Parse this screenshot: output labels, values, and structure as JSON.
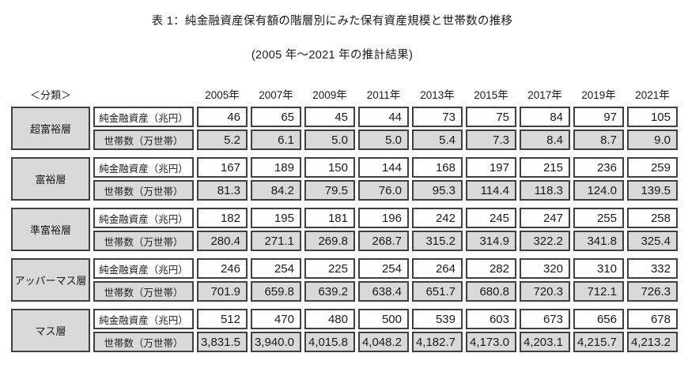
{
  "title": "表 1：純金融資産保有額の階層別にみた保有資産規模と世帯数の推移",
  "subtitle": "(2005 年～2021 年の推計結果)",
  "colors": {
    "cell_border": "#404040",
    "grey_fill": "#d9d9d9",
    "text": "#1a1a1a",
    "background": "#ffffff"
  },
  "table": {
    "classification_label": "＜分類＞",
    "years": [
      "2005年",
      "2007年",
      "2009年",
      "2011年",
      "2013年",
      "2015年",
      "2017年",
      "2019年",
      "2021年"
    ],
    "row_labels": {
      "assets": "純金融資産（兆円）",
      "households": "世帯数（万世帯）"
    },
    "groups": [
      {
        "tier": "超富裕層",
        "assets": [
          "46",
          "65",
          "45",
          "44",
          "73",
          "75",
          "84",
          "97",
          "105"
        ],
        "households": [
          "5.2",
          "6.1",
          "5.0",
          "5.0",
          "5.4",
          "7.3",
          "8.4",
          "8.7",
          "9.0"
        ]
      },
      {
        "tier": "富裕層",
        "assets": [
          "167",
          "189",
          "150",
          "144",
          "168",
          "197",
          "215",
          "236",
          "259"
        ],
        "households": [
          "81.3",
          "84.2",
          "79.5",
          "76.0",
          "95.3",
          "114.4",
          "118.3",
          "124.0",
          "139.5"
        ]
      },
      {
        "tier": "準富裕層",
        "assets": [
          "182",
          "195",
          "181",
          "196",
          "242",
          "245",
          "247",
          "255",
          "258"
        ],
        "households": [
          "280.4",
          "271.1",
          "269.8",
          "268.7",
          "315.2",
          "314.9",
          "322.2",
          "341.8",
          "325.4"
        ]
      },
      {
        "tier": "アッパーマス層",
        "assets": [
          "246",
          "254",
          "225",
          "254",
          "264",
          "282",
          "320",
          "310",
          "332"
        ],
        "households": [
          "701.9",
          "659.8",
          "639.2",
          "638.4",
          "651.7",
          "680.8",
          "720.3",
          "712.1",
          "726.3"
        ]
      },
      {
        "tier": "マス層",
        "assets": [
          "512",
          "470",
          "480",
          "500",
          "539",
          "603",
          "673",
          "656",
          "678"
        ],
        "households": [
          "3,831.5",
          "3,940.0",
          "4,015.8",
          "4,048.2",
          "4,182.7",
          "4,173.0",
          "4,203.1",
          "4,215.7",
          "4,213.2"
        ]
      }
    ]
  }
}
